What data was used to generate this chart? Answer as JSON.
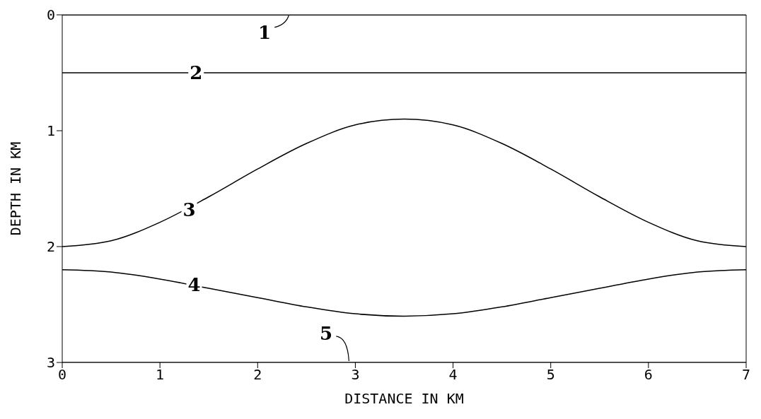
{
  "chart_data": {
    "type": "line",
    "xlabel": "DISTANCE IN KM",
    "ylabel": "DEPTH IN KM",
    "x": [
      0,
      0.5,
      1,
      1.5,
      2,
      2.5,
      3,
      3.5,
      4,
      4.5,
      5,
      5.5,
      6,
      6.5,
      7
    ],
    "series": [
      {
        "color": "#000000",
        "values": [
          0,
          0,
          0,
          0,
          0,
          0,
          0,
          0,
          0,
          0,
          0,
          0,
          0,
          0,
          0
        ]
      },
      {
        "color": "#000000",
        "values": [
          0.5,
          0.5,
          0.5,
          0.5,
          0.5,
          0.5,
          0.5,
          0.5,
          0.5,
          0.5,
          0.5,
          0.5,
          0.5,
          0.5,
          0.5
        ]
      },
      {
        "color": "#000000",
        "values": [
          2.0,
          1.95,
          1.79,
          1.57,
          1.33,
          1.11,
          0.95,
          0.9,
          0.95,
          1.11,
          1.33,
          1.57,
          1.79,
          1.95,
          2.0
        ]
      },
      {
        "color": "#000000",
        "values": [
          2.2,
          2.22,
          2.28,
          2.36,
          2.44,
          2.52,
          2.58,
          2.6,
          2.58,
          2.52,
          2.44,
          2.36,
          2.28,
          2.22,
          2.2
        ]
      },
      {
        "color": "#000000",
        "values": [
          3,
          3,
          3,
          3,
          3,
          3,
          3,
          3,
          3,
          3,
          3,
          3,
          3,
          3,
          3
        ]
      }
    ],
    "xlim": [
      0,
      7
    ],
    "xticks": [
      0,
      1,
      2,
      3,
      4,
      5,
      6,
      7
    ],
    "ylim": [
      3,
      0
    ],
    "yticks": [
      0,
      1,
      2,
      3
    ],
    "marker": "none",
    "line_style": "solid",
    "annotations": [
      {
        "text": "1",
        "x": 2.07,
        "y": 0.15
      },
      {
        "text": "2",
        "x": 1.37,
        "y": 0.5
      },
      {
        "text": "3",
        "x": 1.3,
        "y": 1.68
      },
      {
        "text": "4",
        "x": 1.35,
        "y": 2.33
      },
      {
        "text": "5",
        "x": 2.7,
        "y": 2.75
      }
    ]
  }
}
